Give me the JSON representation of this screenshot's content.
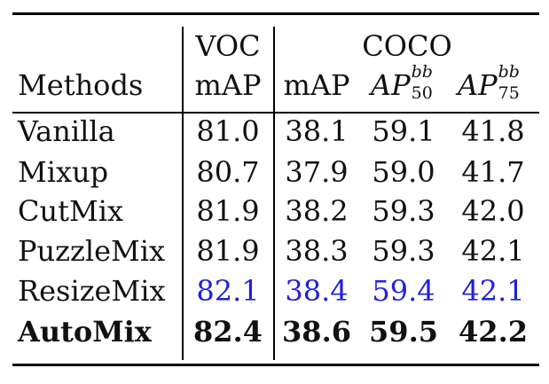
{
  "table": {
    "header": {
      "group_voc": "VOC",
      "group_coco": "COCO",
      "col_methods": "Methods",
      "col_voc_map": "mAP",
      "col_coco_map": "mAP",
      "col_ap50_base": "AP",
      "col_ap50_sup": "bb",
      "col_ap50_sub": "50",
      "col_ap75_base": "AP",
      "col_ap75_sup": "bb",
      "col_ap75_sub": "75"
    },
    "rows": [
      {
        "method": "Vanilla",
        "voc_map": "81.0",
        "coco_map": "38.1",
        "ap50": "59.1",
        "ap75": "41.8",
        "style": "normal"
      },
      {
        "method": "Mixup",
        "voc_map": "80.7",
        "coco_map": "37.9",
        "ap50": "59.0",
        "ap75": "41.7",
        "style": "normal"
      },
      {
        "method": "CutMix",
        "voc_map": "81.9",
        "coco_map": "38.2",
        "ap50": "59.3",
        "ap75": "42.0",
        "style": "normal"
      },
      {
        "method": "PuzzleMix",
        "voc_map": "81.9",
        "coco_map": "38.3",
        "ap50": "59.3",
        "ap75": "42.1",
        "style": "normal"
      },
      {
        "method": "ResizeMix",
        "voc_map": "82.1",
        "coco_map": "38.4",
        "ap50": "59.4",
        "ap75": "42.1",
        "style": "blue"
      },
      {
        "method": "AutoMix",
        "voc_map": "82.4",
        "coco_map": "38.6",
        "ap50": "59.5",
        "ap75": "42.2",
        "style": "bold"
      }
    ],
    "colors": {
      "text": "#111111",
      "highlight_blue": "#2020dd",
      "rule": "#000000"
    }
  }
}
